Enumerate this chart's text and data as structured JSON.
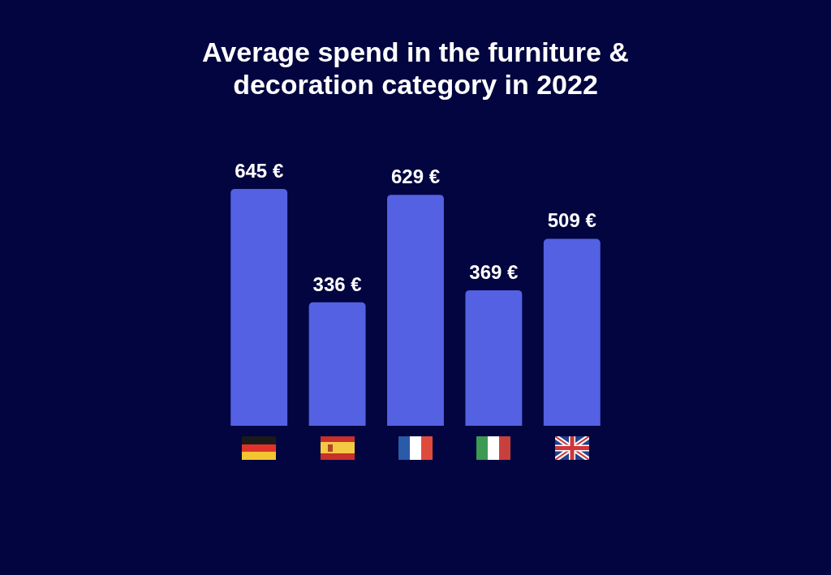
{
  "chart_data": {
    "type": "bar",
    "title": "Average spend in the furniture & decoration category in 2022",
    "categories": [
      null,
      null,
      null,
      null,
      null
    ],
    "values": [
      645,
      336,
      629,
      369,
      509
    ],
    "color": "#5461e3",
    "value_labels": [
      "645 €",
      "336 €",
      "629 €",
      "369 €",
      "509 €"
    ],
    "tick_labels": false
  }
}
